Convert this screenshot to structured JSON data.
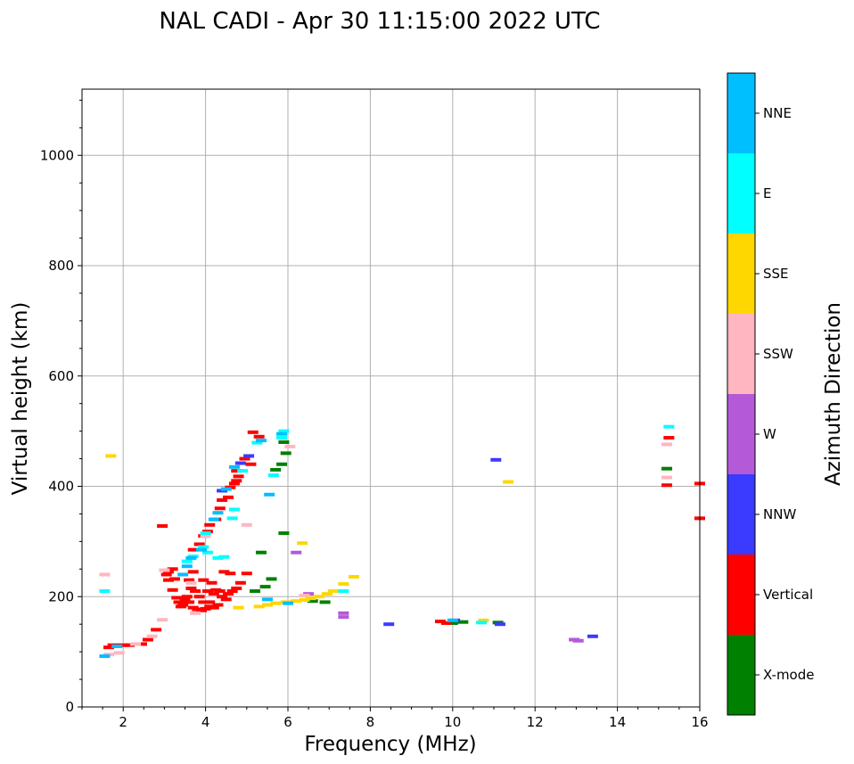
{
  "chart_data": {
    "type": "scatter",
    "title": "NAL CADI - Apr 30 11:15:00 2022 UTC",
    "xlabel": "Frequency (MHz)",
    "ylabel": "Virtual height (km)",
    "xlim": [
      1,
      16
    ],
    "ylim": [
      0,
      1120
    ],
    "xticks": [
      2,
      4,
      6,
      8,
      10,
      12,
      14,
      16
    ],
    "yticks": [
      0,
      200,
      400,
      600,
      800,
      1000
    ],
    "grid": true,
    "colorbar": {
      "label": "Azimuth Direction",
      "categories": [
        {
          "name": "X-mode",
          "color": "#008000"
        },
        {
          "name": "Vertical",
          "color": "#ff0000"
        },
        {
          "name": "NNW",
          "color": "#3b3bff"
        },
        {
          "name": "W",
          "color": "#b45ad8"
        },
        {
          "name": "SSW",
          "color": "#ffb6c1"
        },
        {
          "name": "SSE",
          "color": "#ffd700"
        },
        {
          "name": "E",
          "color": "#00ffff"
        },
        {
          "name": "NNE",
          "color": "#00bfff"
        }
      ]
    },
    "series": [
      {
        "name": "X-mode",
        "points": [
          [
            5.7,
            430
          ],
          [
            5.9,
            315
          ],
          [
            5.85,
            440
          ],
          [
            5.95,
            460
          ],
          [
            5.9,
            480
          ],
          [
            5.6,
            232
          ],
          [
            5.45,
            218
          ],
          [
            5.35,
            280
          ],
          [
            6.6,
            192
          ],
          [
            6.9,
            190
          ],
          [
            10.0,
            152
          ],
          [
            10.25,
            154
          ],
          [
            11.1,
            153
          ],
          [
            5.2,
            210
          ],
          [
            15.2,
            432
          ]
        ]
      },
      {
        "name": "Vertical",
        "points": [
          [
            1.65,
            108
          ],
          [
            1.75,
            112
          ],
          [
            2.0,
            112
          ],
          [
            2.15,
            112
          ],
          [
            2.45,
            114
          ],
          [
            2.6,
            122
          ],
          [
            2.8,
            140
          ],
          [
            2.95,
            328
          ],
          [
            3.05,
            240
          ],
          [
            3.1,
            245
          ],
          [
            3.1,
            230
          ],
          [
            3.2,
            250
          ],
          [
            3.25,
            232
          ],
          [
            3.2,
            212
          ],
          [
            3.3,
            198
          ],
          [
            3.35,
            190
          ],
          [
            3.4,
            182
          ],
          [
            3.45,
            185
          ],
          [
            3.5,
            195
          ],
          [
            3.55,
            200
          ],
          [
            3.6,
            190
          ],
          [
            3.7,
            180
          ],
          [
            3.8,
            177
          ],
          [
            3.9,
            175
          ],
          [
            4.0,
            178
          ],
          [
            4.1,
            182
          ],
          [
            4.2,
            180
          ],
          [
            4.3,
            185
          ],
          [
            4.1,
            190
          ],
          [
            4.05,
            210
          ],
          [
            4.2,
            205
          ],
          [
            4.15,
            225
          ],
          [
            4.25,
            212
          ],
          [
            4.35,
            210
          ],
          [
            4.4,
            200
          ],
          [
            4.5,
            195
          ],
          [
            4.55,
            205
          ],
          [
            4.65,
            210
          ],
          [
            4.75,
            215
          ],
          [
            4.85,
            225
          ],
          [
            5.0,
            242
          ],
          [
            4.45,
            245
          ],
          [
            4.6,
            242
          ],
          [
            3.95,
            190
          ],
          [
            3.85,
            200
          ],
          [
            3.75,
            210
          ],
          [
            3.65,
            215
          ],
          [
            3.6,
            230
          ],
          [
            3.7,
            245
          ],
          [
            3.95,
            230
          ],
          [
            3.7,
            285
          ],
          [
            3.85,
            295
          ],
          [
            3.95,
            310
          ],
          [
            4.05,
            318
          ],
          [
            4.1,
            330
          ],
          [
            4.25,
            340
          ],
          [
            4.35,
            360
          ],
          [
            4.4,
            375
          ],
          [
            4.55,
            380
          ],
          [
            4.6,
            398
          ],
          [
            4.7,
            405
          ],
          [
            4.75,
            410
          ],
          [
            4.8,
            418
          ],
          [
            4.75,
            428
          ],
          [
            4.95,
            450
          ],
          [
            5.15,
            498
          ],
          [
            5.3,
            490
          ],
          [
            5.1,
            440
          ],
          [
            9.7,
            155
          ],
          [
            9.85,
            152
          ],
          [
            15.2,
            402
          ],
          [
            15.25,
            488
          ],
          [
            16.0,
            405
          ],
          [
            16.0,
            342
          ]
        ]
      },
      {
        "name": "NNW",
        "points": [
          [
            4.4,
            392
          ],
          [
            4.85,
            442
          ],
          [
            5.05,
            455
          ],
          [
            8.45,
            150
          ],
          [
            10.05,
            157
          ],
          [
            11.05,
            448
          ],
          [
            11.15,
            150
          ],
          [
            13.4,
            128
          ]
        ]
      },
      {
        "name": "W",
        "points": [
          [
            6.2,
            280
          ],
          [
            6.5,
            205
          ],
          [
            7.35,
            170
          ],
          [
            7.35,
            163
          ],
          [
            12.95,
            122
          ],
          [
            13.05,
            120
          ]
        ]
      },
      {
        "name": "SSW",
        "points": [
          [
            1.55,
            240
          ],
          [
            1.65,
            95
          ],
          [
            1.9,
            98
          ],
          [
            2.3,
            114
          ],
          [
            2.7,
            128
          ],
          [
            2.95,
            158
          ],
          [
            3.0,
            248
          ],
          [
            3.65,
            225
          ],
          [
            4.0,
            310
          ],
          [
            3.75,
            170
          ],
          [
            5.0,
            330
          ],
          [
            6.05,
            472
          ],
          [
            6.4,
            202
          ],
          [
            15.2,
            476
          ],
          [
            15.2,
            416
          ]
        ]
      },
      {
        "name": "SSE",
        "points": [
          [
            1.7,
            455
          ],
          [
            4.8,
            180
          ],
          [
            5.3,
            182
          ],
          [
            5.5,
            185
          ],
          [
            5.7,
            188
          ],
          [
            5.95,
            190
          ],
          [
            6.2,
            192
          ],
          [
            6.4,
            194
          ],
          [
            6.55,
            197
          ],
          [
            6.75,
            200
          ],
          [
            6.95,
            205
          ],
          [
            7.1,
            210
          ],
          [
            7.35,
            223
          ],
          [
            7.6,
            236
          ],
          [
            6.35,
            297
          ],
          [
            10.75,
            157
          ],
          [
            11.35,
            408
          ]
        ]
      },
      {
        "name": "E",
        "points": [
          [
            1.55,
            210
          ],
          [
            3.55,
            264
          ],
          [
            3.7,
            273
          ],
          [
            3.95,
            290
          ],
          [
            4.0,
            315
          ],
          [
            4.05,
            280
          ],
          [
            4.3,
            270
          ],
          [
            4.45,
            272
          ],
          [
            4.65,
            342
          ],
          [
            4.7,
            358
          ],
          [
            4.9,
            428
          ],
          [
            5.25,
            479
          ],
          [
            5.85,
            488
          ],
          [
            5.9,
            500
          ],
          [
            5.65,
            420
          ],
          [
            7.35,
            210
          ],
          [
            10.7,
            153
          ],
          [
            15.25,
            508
          ]
        ]
      },
      {
        "name": "NNE",
        "points": [
          [
            1.55,
            92
          ],
          [
            1.85,
            110
          ],
          [
            3.45,
            240
          ],
          [
            3.55,
            255
          ],
          [
            3.65,
            270
          ],
          [
            3.9,
            285
          ],
          [
            4.2,
            340
          ],
          [
            4.3,
            352
          ],
          [
            4.5,
            395
          ],
          [
            4.7,
            435
          ],
          [
            5.35,
            483
          ],
          [
            5.55,
            385
          ],
          [
            5.85,
            495
          ],
          [
            5.5,
            195
          ],
          [
            6.0,
            188
          ],
          [
            10.0,
            157
          ]
        ]
      }
    ]
  }
}
